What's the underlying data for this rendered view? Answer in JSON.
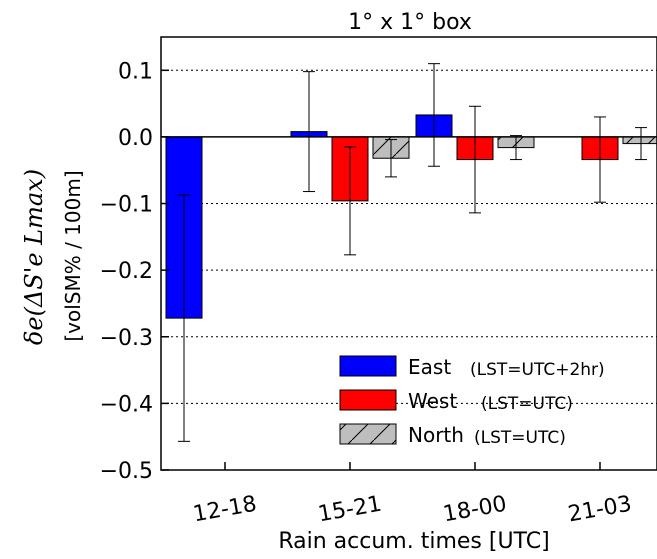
{
  "chart_data": {
    "type": "bar",
    "title": "1° x 1°  box",
    "xlabel": "Rain accum. times [UTC]",
    "ylabel_main": "δe(ΔS'e Lmax)",
    "ylabel_units": "[volSM% / 100m]",
    "ylim": [
      -0.5,
      0.15
    ],
    "yticks": [
      -0.5,
      -0.4,
      -0.3,
      -0.2,
      -0.1,
      0.0,
      0.1
    ],
    "ytick_labels": [
      "−0.5",
      "−0.4",
      "−0.3",
      "−0.2",
      "−0.1",
      "0.0",
      "0.1"
    ],
    "categories": [
      "12-18",
      "15-21",
      "18-00",
      "21-03"
    ],
    "grid": "horizontal dotted",
    "legend_position": "lower-right",
    "series": [
      {
        "name": "East",
        "note": "(LST=UTC+2hr)",
        "color": "#0000ff",
        "values": [
          -0.272,
          0.008,
          0.033,
          null
        ],
        "errors": [
          0.185,
          0.09,
          0.077,
          null
        ]
      },
      {
        "name": "West",
        "note": "(LST=UTC)",
        "color": "#ff0000",
        "values": [
          null,
          -0.096,
          -0.034,
          -0.034
        ],
        "errors": [
          null,
          0.081,
          0.08,
          0.064
        ]
      },
      {
        "name": "North",
        "note": "(LST=UTC)",
        "color": "#bebebe",
        "hatch": "/",
        "values": [
          null,
          -0.032,
          -0.016,
          -0.01
        ],
        "errors": [
          null,
          0.028,
          0.018,
          0.024
        ]
      }
    ]
  }
}
